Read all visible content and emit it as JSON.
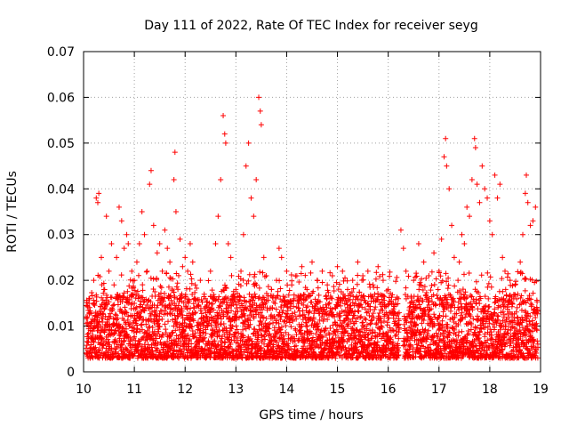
{
  "chart_data": {
    "type": "scatter",
    "title": "Day 111 of 2022, Rate Of TEC Index for receiver seyg",
    "xlabel": "GPS time / hours",
    "ylabel": "ROTI / TECUs",
    "xlim": [
      10,
      19
    ],
    "ylim": [
      0,
      0.07
    ],
    "xticks": [
      "10",
      "11",
      "12",
      "13",
      "14",
      "15",
      "16",
      "17",
      "18",
      "19"
    ],
    "yticks": [
      "0",
      "0.01",
      "0.02",
      "0.03",
      "0.04",
      "0.05",
      "0.06",
      "0.07"
    ],
    "grid": true,
    "marker": "+",
    "color": "#ff0000",
    "series": [
      {
        "name": "ROTI",
        "points": [
          [
            10.05,
            0.012
          ],
          [
            10.12,
            0.016
          ],
          [
            10.2,
            0.02
          ],
          [
            10.25,
            0.038
          ],
          [
            10.28,
            0.037
          ],
          [
            10.3,
            0.039
          ],
          [
            10.35,
            0.025
          ],
          [
            10.4,
            0.018
          ],
          [
            10.45,
            0.034
          ],
          [
            10.5,
            0.022
          ],
          [
            10.55,
            0.028
          ],
          [
            10.6,
            0.019
          ],
          [
            10.65,
            0.025
          ],
          [
            10.7,
            0.036
          ],
          [
            10.75,
            0.033
          ],
          [
            10.8,
            0.027
          ],
          [
            10.85,
            0.03
          ],
          [
            10.88,
            0.028
          ],
          [
            10.95,
            0.022
          ],
          [
            11.0,
            0.02
          ],
          [
            11.05,
            0.024
          ],
          [
            11.1,
            0.028
          ],
          [
            11.15,
            0.035
          ],
          [
            11.2,
            0.03
          ],
          [
            11.25,
            0.022
          ],
          [
            11.3,
            0.041
          ],
          [
            11.33,
            0.044
          ],
          [
            11.38,
            0.032
          ],
          [
            11.45,
            0.026
          ],
          [
            11.5,
            0.028
          ],
          [
            11.55,
            0.022
          ],
          [
            11.6,
            0.031
          ],
          [
            11.65,
            0.027
          ],
          [
            11.7,
            0.024
          ],
          [
            11.78,
            0.042
          ],
          [
            11.8,
            0.048
          ],
          [
            11.82,
            0.035
          ],
          [
            11.9,
            0.029
          ],
          [
            11.95,
            0.023
          ],
          [
            12.0,
            0.025
          ],
          [
            12.05,
            0.022
          ],
          [
            12.1,
            0.028
          ],
          [
            12.15,
            0.024
          ],
          [
            12.2,
            0.019
          ],
          [
            12.3,
            0.02
          ],
          [
            12.4,
            0.016
          ],
          [
            12.5,
            0.022
          ],
          [
            12.6,
            0.028
          ],
          [
            12.65,
            0.034
          ],
          [
            12.7,
            0.042
          ],
          [
            12.75,
            0.056
          ],
          [
            12.78,
            0.052
          ],
          [
            12.8,
            0.05
          ],
          [
            12.85,
            0.028
          ],
          [
            12.9,
            0.025
          ],
          [
            13.0,
            0.018
          ],
          [
            13.1,
            0.022
          ],
          [
            13.15,
            0.03
          ],
          [
            13.2,
            0.045
          ],
          [
            13.25,
            0.05
          ],
          [
            13.3,
            0.038
          ],
          [
            13.35,
            0.034
          ],
          [
            13.4,
            0.042
          ],
          [
            13.45,
            0.06
          ],
          [
            13.48,
            0.057
          ],
          [
            13.5,
            0.054
          ],
          [
            13.55,
            0.025
          ],
          [
            13.6,
            0.021
          ],
          [
            13.7,
            0.018
          ],
          [
            13.8,
            0.02
          ],
          [
            13.85,
            0.027
          ],
          [
            13.9,
            0.025
          ],
          [
            14.0,
            0.022
          ],
          [
            14.1,
            0.019
          ],
          [
            14.2,
            0.021
          ],
          [
            14.3,
            0.023
          ],
          [
            14.4,
            0.018
          ],
          [
            14.5,
            0.024
          ],
          [
            14.6,
            0.02
          ],
          [
            14.7,
            0.022
          ],
          [
            14.8,
            0.019
          ],
          [
            14.9,
            0.021
          ],
          [
            15.0,
            0.023
          ],
          [
            15.1,
            0.022
          ],
          [
            15.2,
            0.018
          ],
          [
            15.3,
            0.02
          ],
          [
            15.4,
            0.024
          ],
          [
            15.5,
            0.021
          ],
          [
            15.6,
            0.022
          ],
          [
            15.7,
            0.019
          ],
          [
            15.8,
            0.023
          ],
          [
            15.9,
            0.02
          ],
          [
            16.0,
            0.018
          ],
          [
            16.1,
            0.015
          ],
          [
            16.2,
            0.016
          ],
          [
            16.25,
            0.031
          ],
          [
            16.3,
            0.027
          ],
          [
            16.35,
            0.022
          ],
          [
            16.5,
            0.02
          ],
          [
            16.6,
            0.028
          ],
          [
            16.7,
            0.024
          ],
          [
            16.8,
            0.021
          ],
          [
            16.9,
            0.026
          ],
          [
            17.0,
            0.022
          ],
          [
            17.05,
            0.029
          ],
          [
            17.1,
            0.047
          ],
          [
            17.13,
            0.051
          ],
          [
            17.15,
            0.045
          ],
          [
            17.2,
            0.04
          ],
          [
            17.25,
            0.032
          ],
          [
            17.3,
            0.025
          ],
          [
            17.4,
            0.024
          ],
          [
            17.45,
            0.03
          ],
          [
            17.5,
            0.028
          ],
          [
            17.55,
            0.036
          ],
          [
            17.6,
            0.034
          ],
          [
            17.65,
            0.042
          ],
          [
            17.7,
            0.051
          ],
          [
            17.72,
            0.049
          ],
          [
            17.75,
            0.041
          ],
          [
            17.8,
            0.037
          ],
          [
            17.85,
            0.045
          ],
          [
            17.9,
            0.04
          ],
          [
            17.95,
            0.038
          ],
          [
            18.0,
            0.033
          ],
          [
            18.05,
            0.03
          ],
          [
            18.1,
            0.043
          ],
          [
            18.15,
            0.038
          ],
          [
            18.2,
            0.041
          ],
          [
            18.25,
            0.025
          ],
          [
            18.3,
            0.022
          ],
          [
            18.4,
            0.02
          ],
          [
            18.5,
            0.019
          ],
          [
            18.55,
            0.017
          ],
          [
            18.6,
            0.024
          ],
          [
            18.65,
            0.03
          ],
          [
            18.7,
            0.039
          ],
          [
            18.72,
            0.043
          ],
          [
            18.75,
            0.037
          ],
          [
            18.8,
            0.032
          ],
          [
            18.85,
            0.033
          ],
          [
            18.9,
            0.036
          ]
        ]
      }
    ]
  }
}
